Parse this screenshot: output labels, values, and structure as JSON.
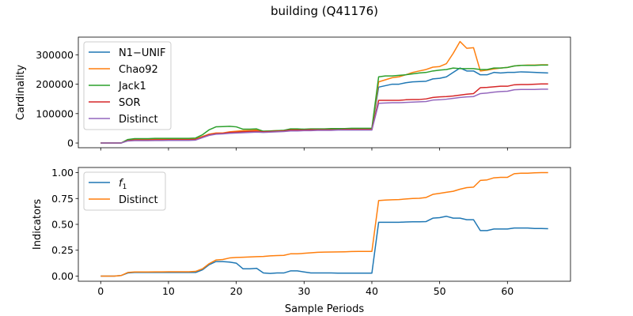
{
  "figure": {
    "title": "building (Q41176)"
  },
  "chart_data": [
    {
      "type": "line",
      "xlabel": "",
      "ylabel": "Cardinality",
      "xlim": [
        -3.3,
        69.3
      ],
      "ylim": [
        -16000,
        360000
      ],
      "xticks": [
        0,
        10,
        20,
        30,
        40,
        50,
        60
      ],
      "yticks": [
        0,
        100000,
        200000,
        300000
      ],
      "ytick_labels": [
        "0",
        "100000",
        "200000",
        "300000"
      ],
      "show_xtick_labels": false,
      "legend": "upper-left",
      "x": [
        0,
        1,
        2,
        3,
        4,
        5,
        6,
        7,
        8,
        9,
        10,
        11,
        12,
        13,
        14,
        15,
        16,
        17,
        18,
        19,
        20,
        21,
        22,
        23,
        24,
        25,
        26,
        27,
        28,
        29,
        30,
        31,
        32,
        33,
        34,
        35,
        36,
        37,
        38,
        39,
        40,
        41,
        42,
        43,
        44,
        45,
        46,
        47,
        48,
        49,
        50,
        51,
        52,
        53,
        54,
        55,
        56,
        57,
        58,
        59,
        60,
        61,
        62,
        63,
        64,
        65,
        66
      ],
      "series": [
        {
          "name": "N1−UNIF",
          "color": "#1f77b4",
          "values": [
            0,
            0,
            0,
            0,
            10000,
            12000,
            12000,
            12500,
            12500,
            12500,
            13000,
            13000,
            13000,
            13000,
            14000,
            22000,
            30000,
            33000,
            33000,
            37000,
            38000,
            40000,
            41000,
            43000,
            40000,
            40000,
            41000,
            42000,
            45000,
            45000,
            46000,
            46000,
            46000,
            46000,
            47000,
            47000,
            47000,
            48000,
            48000,
            48000,
            48000,
            190000,
            195000,
            200000,
            200000,
            205000,
            208000,
            209000,
            210000,
            218000,
            220000,
            225000,
            240000,
            255000,
            245000,
            245000,
            232000,
            232000,
            240000,
            238000,
            240000,
            240000,
            242000,
            241000,
            240000,
            239000,
            238000
          ]
        },
        {
          "name": "Chao92",
          "color": "#ff7f0e",
          "values": [
            0,
            0,
            0,
            0,
            10000,
            13000,
            13000,
            13000,
            13000,
            13000,
            13000,
            13000,
            13000,
            13000,
            14000,
            22000,
            30000,
            34000,
            34000,
            38000,
            40000,
            42000,
            43000,
            44000,
            40000,
            41000,
            42000,
            43000,
            45000,
            45000,
            46000,
            46000,
            47000,
            47000,
            47000,
            48000,
            48000,
            48000,
            48000,
            48000,
            48000,
            208000,
            215000,
            222000,
            225000,
            232000,
            240000,
            245000,
            250000,
            258000,
            260000,
            270000,
            305000,
            345000,
            322000,
            324000,
            245000,
            248000,
            252000,
            255000,
            257000,
            262000,
            264000,
            265000,
            265000,
            266000,
            266000
          ]
        },
        {
          "name": "Jack1",
          "color": "#2ca02c",
          "values": [
            0,
            0,
            0,
            0,
            12000,
            15000,
            15000,
            15000,
            16000,
            16000,
            16000,
            16000,
            16000,
            16000,
            17000,
            28000,
            45000,
            55000,
            56000,
            57000,
            55000,
            47000,
            47000,
            48000,
            40000,
            41000,
            42000,
            43000,
            48000,
            48000,
            47000,
            48000,
            48000,
            48000,
            49000,
            49000,
            49000,
            50000,
            50000,
            50000,
            50000,
            225000,
            228000,
            228000,
            230000,
            232000,
            235000,
            238000,
            240000,
            245000,
            248000,
            250000,
            255000,
            253000,
            253000,
            253000,
            250000,
            250000,
            255000,
            255000,
            257000,
            262000,
            264000,
            264000,
            264000,
            265000,
            265000
          ]
        },
        {
          "name": "SOR",
          "color": "#d62728",
          "values": [
            0,
            0,
            0,
            0,
            8000,
            10000,
            10000,
            10000,
            10500,
            10500,
            11000,
            11000,
            11000,
            11000,
            12000,
            20000,
            28000,
            32000,
            33000,
            36000,
            37000,
            38000,
            39000,
            40000,
            38000,
            39000,
            40000,
            41000,
            44000,
            44000,
            44000,
            45000,
            45000,
            45000,
            45000,
            45000,
            46000,
            46000,
            46000,
            46000,
            46000,
            145000,
            145000,
            145000,
            145000,
            147000,
            148000,
            148000,
            150000,
            155000,
            157000,
            158000,
            160000,
            163000,
            166000,
            168000,
            188000,
            189000,
            191000,
            193000,
            193000,
            198000,
            199000,
            199000,
            200000,
            201000,
            201000
          ]
        },
        {
          "name": "Distinct",
          "color": "#9467bd",
          "values": [
            0,
            0,
            0,
            0,
            7000,
            8000,
            8000,
            8000,
            8500,
            8500,
            9000,
            9000,
            9000,
            9000,
            10000,
            18000,
            26000,
            30000,
            31000,
            33000,
            34000,
            35000,
            36000,
            37000,
            36000,
            37000,
            38000,
            39000,
            41000,
            41000,
            42000,
            42000,
            43000,
            43000,
            43000,
            44000,
            44000,
            44000,
            44000,
            44000,
            44000,
            135000,
            136000,
            137000,
            137000,
            138000,
            139000,
            140000,
            141000,
            146000,
            147000,
            149000,
            152000,
            155000,
            157000,
            158000,
            168000,
            170000,
            173000,
            175000,
            176000,
            181000,
            182000,
            182000,
            182000,
            183000,
            183000
          ]
        }
      ]
    },
    {
      "type": "line",
      "xlabel": "Sample Periods",
      "ylabel": "Indicators",
      "xlim": [
        -3.3,
        69.3
      ],
      "ylim": [
        -0.05,
        1.05
      ],
      "xticks": [
        0,
        10,
        20,
        30,
        40,
        50,
        60
      ],
      "xtick_labels": [
        "0",
        "10",
        "20",
        "30",
        "40",
        "50",
        "60"
      ],
      "yticks": [
        0,
        0.25,
        0.5,
        0.75,
        1.0
      ],
      "ytick_labels": [
        "0.00",
        "0.25",
        "0.50",
        "0.75",
        "1.00"
      ],
      "show_xtick_labels": true,
      "legend": "upper-left",
      "x": [
        0,
        1,
        2,
        3,
        4,
        5,
        6,
        7,
        8,
        9,
        10,
        11,
        12,
        13,
        14,
        15,
        16,
        17,
        18,
        19,
        20,
        21,
        22,
        23,
        24,
        25,
        26,
        27,
        28,
        29,
        30,
        31,
        32,
        33,
        34,
        35,
        36,
        37,
        38,
        39,
        40,
        41,
        42,
        43,
        44,
        45,
        46,
        47,
        48,
        49,
        50,
        51,
        52,
        53,
        54,
        55,
        56,
        57,
        58,
        59,
        60,
        61,
        62,
        63,
        64,
        65,
        66
      ],
      "series": [
        {
          "name": "f",
          "name_sub": "1",
          "color": "#1f77b4",
          "values": [
            0,
            0,
            0,
            0.005,
            0.03,
            0.035,
            0.035,
            0.035,
            0.035,
            0.035,
            0.035,
            0.035,
            0.035,
            0.035,
            0.035,
            0.06,
            0.11,
            0.14,
            0.14,
            0.135,
            0.125,
            0.07,
            0.07,
            0.075,
            0.03,
            0.025,
            0.03,
            0.03,
            0.05,
            0.05,
            0.04,
            0.03,
            0.03,
            0.03,
            0.03,
            0.028,
            0.028,
            0.028,
            0.028,
            0.028,
            0.028,
            0.52,
            0.52,
            0.52,
            0.52,
            0.523,
            0.525,
            0.525,
            0.527,
            0.56,
            0.565,
            0.578,
            0.56,
            0.56,
            0.545,
            0.545,
            0.44,
            0.44,
            0.455,
            0.455,
            0.455,
            0.465,
            0.465,
            0.465,
            0.46,
            0.46,
            0.458
          ]
        },
        {
          "name": "Distinct",
          "name_sub": "",
          "color": "#ff7f0e",
          "values": [
            0,
            0,
            0,
            0.005,
            0.035,
            0.04,
            0.04,
            0.04,
            0.041,
            0.041,
            0.042,
            0.042,
            0.042,
            0.042,
            0.045,
            0.07,
            0.12,
            0.155,
            0.16,
            0.175,
            0.18,
            0.182,
            0.185,
            0.188,
            0.19,
            0.195,
            0.198,
            0.2,
            0.215,
            0.215,
            0.22,
            0.225,
            0.23,
            0.232,
            0.233,
            0.234,
            0.235,
            0.237,
            0.238,
            0.238,
            0.238,
            0.73,
            0.735,
            0.738,
            0.74,
            0.745,
            0.75,
            0.752,
            0.76,
            0.79,
            0.8,
            0.81,
            0.82,
            0.84,
            0.855,
            0.86,
            0.925,
            0.93,
            0.95,
            0.955,
            0.955,
            0.99,
            0.995,
            0.995,
            0.998,
            1.0,
            1.0
          ]
        }
      ]
    }
  ]
}
